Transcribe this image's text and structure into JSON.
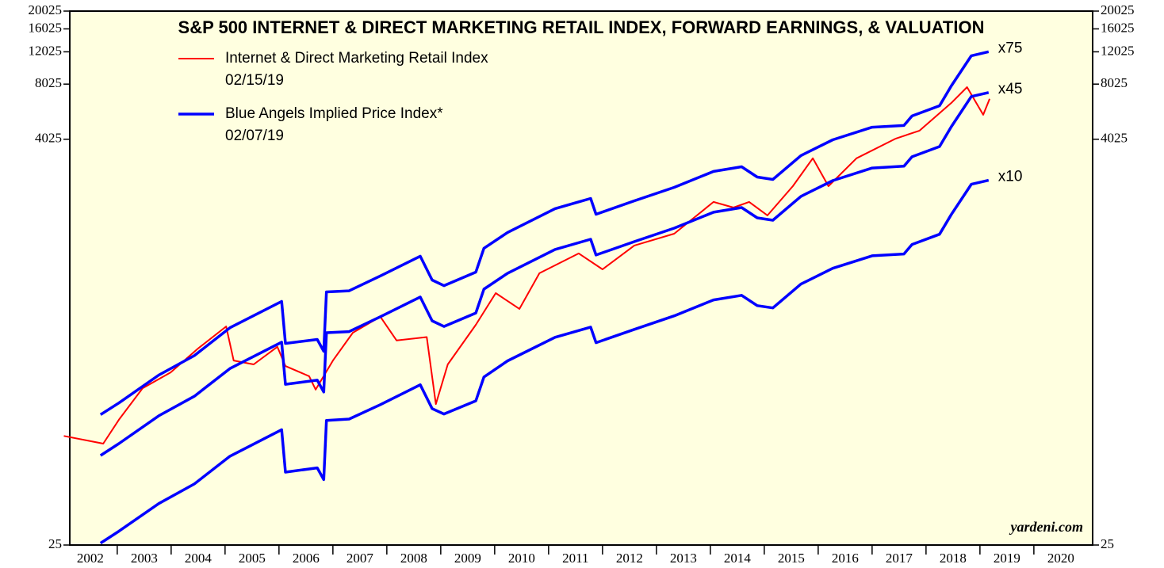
{
  "chart_data": {
    "type": "line",
    "title": "S&P 500 INTERNET & DIRECT MARKETING RETAIL INDEX, FORWARD EARNINGS, & VALUATION",
    "source": "yardeni.com",
    "log_scale": true,
    "ylim": [
      25,
      20025
    ],
    "yticks": [
      25,
      4025,
      8025,
      12025,
      16025,
      20025
    ],
    "xlim": [
      2002.12,
      2021.09
    ],
    "xticks": [
      2003,
      2004,
      2005,
      2006,
      2007,
      2008,
      2009,
      2010,
      2011,
      2012,
      2013,
      2014,
      2015,
      2016,
      2017,
      2018,
      2019,
      2020
    ],
    "year_labels": [
      2002,
      2003,
      2004,
      2005,
      2006,
      2007,
      2008,
      2009,
      2010,
      2011,
      2012,
      2013,
      2014,
      2015,
      2016,
      2017,
      2018,
      2019,
      2020
    ],
    "series": [
      {
        "name": "Internet & Direct Marketing Retail Index",
        "date": "02/15/19",
        "color": "#ff0000",
        "width": 2,
        "x": [
          2002.01,
          2002.74,
          2003.03,
          2003.47,
          2003.99,
          2004.5,
          2005.02,
          2005.16,
          2005.53,
          2005.97,
          2006.12,
          2006.56,
          2006.68,
          2007.0,
          2007.37,
          2007.88,
          2008.18,
          2008.74,
          2008.91,
          2009.13,
          2009.65,
          2010.02,
          2010.46,
          2010.83,
          2011.56,
          2012.0,
          2012.59,
          2013.33,
          2014.06,
          2014.43,
          2014.72,
          2015.06,
          2015.53,
          2015.9,
          2016.19,
          2016.71,
          2017.44,
          2017.88,
          2018.47,
          2018.76,
          2019.06,
          2019.18
        ],
        "values": [
          98,
          89,
          120,
          178,
          217,
          293,
          386,
          252,
          240,
          299,
          235,
          207,
          175,
          252,
          357,
          436,
          324,
          338,
          146,
          240,
          394,
          586,
          481,
          752,
          963,
          789,
          1064,
          1233,
          1835,
          1711,
          1835,
          1550,
          2237,
          3169,
          2237,
          3169,
          4058,
          4480,
          6340,
          7730,
          5465,
          6670
        ]
      },
      {
        "name": "Blue Angels Implied Price Index*",
        "date": "02/07/19",
        "label": "x75",
        "color": "#0000ff",
        "width": 3.5,
        "x": [
          2002.69,
          2003.03,
          2003.77,
          2004.43,
          2005.09,
          2006.05,
          2006.12,
          2006.71,
          2006.83,
          2006.88,
          2007.3,
          2007.88,
          2008.62,
          2008.84,
          2009.06,
          2009.65,
          2009.8,
          2010.24,
          2011.12,
          2011.78,
          2011.88,
          2012.59,
          2013.33,
          2014.06,
          2014.58,
          2014.87,
          2015.16,
          2015.68,
          2016.27,
          2017.0,
          2017.59,
          2017.74,
          2018.25,
          2018.47,
          2018.84,
          2019.16
        ],
        "values": [
          128,
          148,
          210,
          268,
          380,
          528,
          312,
          328,
          283,
          595,
          603,
          727,
          930,
          690,
          643,
          762,
          1027,
          1253,
          1687,
          1917,
          1573,
          1862,
          2203,
          2688,
          2852,
          2507,
          2433,
          3278,
          3995,
          4677,
          4783,
          5383,
          6120,
          7852,
          11450,
          12033
        ]
      },
      {
        "label": "x45",
        "color": "#0000ff",
        "width": 3.5,
        "x": [
          2002.69,
          2003.03,
          2003.77,
          2004.43,
          2005.09,
          2006.05,
          2006.12,
          2006.71,
          2006.83,
          2006.88,
          2007.3,
          2007.88,
          2008.62,
          2008.84,
          2009.06,
          2009.65,
          2009.8,
          2010.24,
          2011.12,
          2011.78,
          2011.88,
          2012.59,
          2013.33,
          2014.06,
          2014.58,
          2014.87,
          2015.16,
          2015.68,
          2016.27,
          2017.0,
          2017.59,
          2017.74,
          2018.25,
          2018.47,
          2018.84,
          2019.16
        ],
        "values": [
          76.7,
          89,
          126,
          161,
          228,
          317,
          187,
          197,
          170,
          357,
          362,
          436,
          558,
          414,
          386,
          457,
          616,
          752,
          1012,
          1150,
          944,
          1117,
          1322,
          1613,
          1711,
          1504,
          1460,
          1967,
          2397,
          2806,
          2870,
          3230,
          3672,
          4711,
          6870,
          7220
        ]
      },
      {
        "label": "x10",
        "color": "#0000ff",
        "width": 3.5,
        "x": [
          2002.69,
          2003.03,
          2003.77,
          2004.43,
          2005.09,
          2006.05,
          2006.12,
          2006.71,
          2006.83,
          2006.88,
          2007.3,
          2007.88,
          2008.62,
          2008.84,
          2009.06,
          2009.65,
          2009.8,
          2010.24,
          2011.12,
          2011.78,
          2011.88,
          2012.59,
          2013.33,
          2014.06,
          2014.58,
          2014.87,
          2015.16,
          2015.68,
          2016.27,
          2017.0,
          2017.59,
          2017.74,
          2018.25,
          2018.47,
          2018.84,
          2019.16
        ],
        "values": [
          25.6,
          29.7,
          42,
          53.7,
          76,
          106,
          62.3,
          65.7,
          56.7,
          119,
          121,
          145,
          186,
          138,
          129,
          152,
          205,
          251,
          337,
          383,
          315,
          372,
          441,
          538,
          570,
          501,
          487,
          656,
          799,
          935,
          957,
          1077,
          1224,
          1570,
          2290,
          2407
        ]
      }
    ]
  }
}
